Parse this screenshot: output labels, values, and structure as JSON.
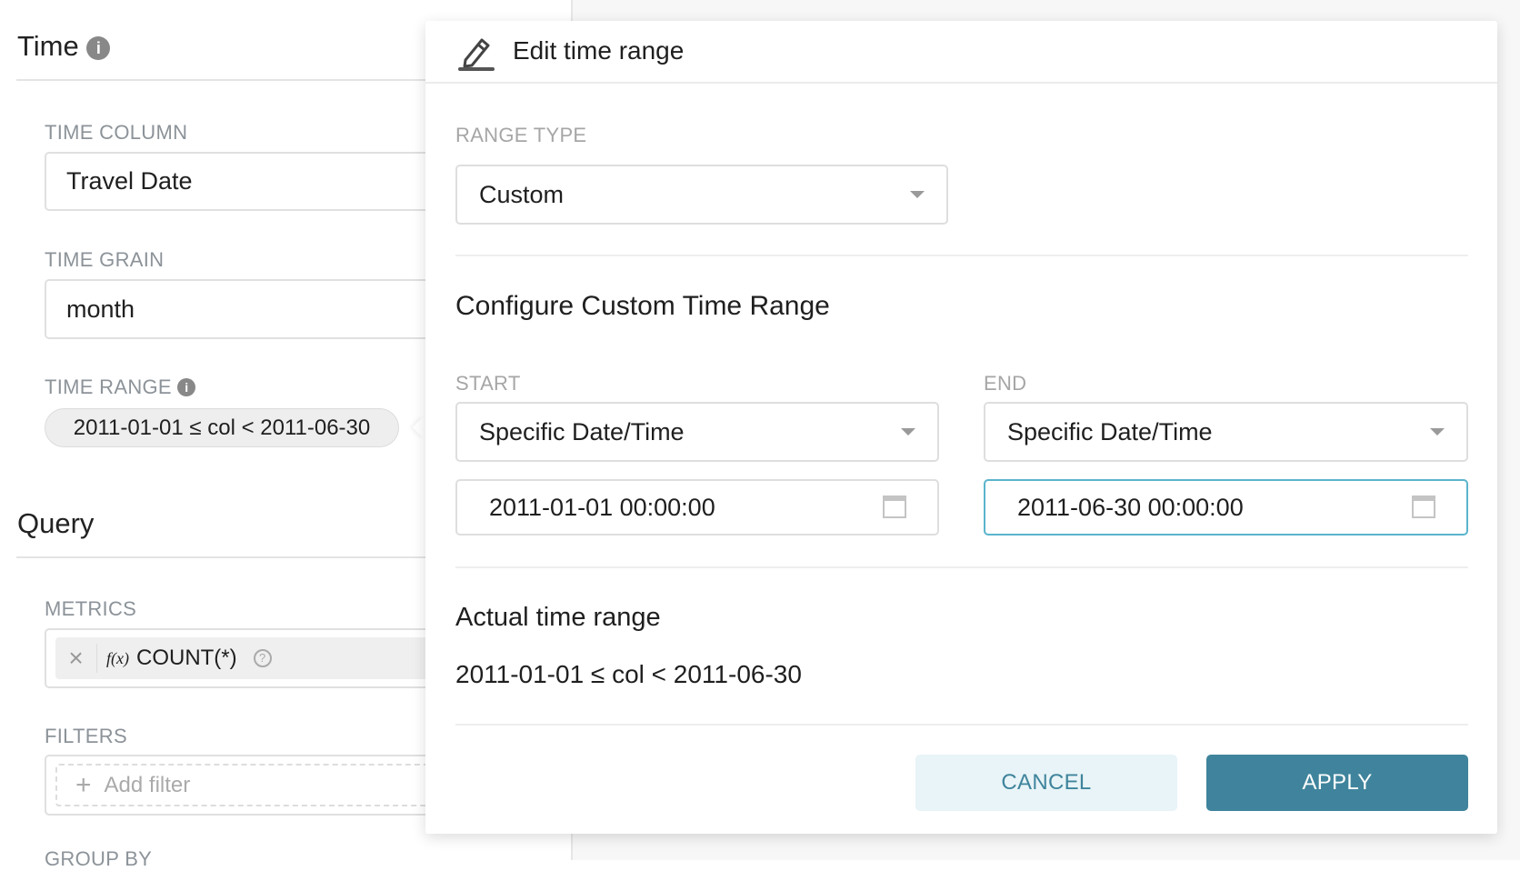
{
  "sidebar": {
    "time_heading": "Time",
    "time_column": {
      "label": "TIME COLUMN",
      "value": "Travel Date"
    },
    "time_grain": {
      "label": "TIME GRAIN",
      "value": "month"
    },
    "time_range": {
      "label": "TIME RANGE",
      "value": "2011-01-01 ≤ col < 2011-06-30"
    },
    "query_heading": "Query",
    "metrics": {
      "label": "METRICS",
      "fx": "f(x)",
      "value": "COUNT(*)",
      "remove": "×",
      "help": "?"
    },
    "filters": {
      "label": "FILTERS",
      "add": "Add filter",
      "plus": "+"
    },
    "group_by": {
      "label": "GROUP BY"
    }
  },
  "popover": {
    "title": "Edit time range",
    "range_type": {
      "label": "RANGE TYPE",
      "value": "Custom"
    },
    "custom_heading": "Configure Custom Time Range",
    "start": {
      "label": "START",
      "mode": "Specific Date/Time",
      "value": "2011-01-01 00:00:00"
    },
    "end": {
      "label": "END",
      "mode": "Specific Date/Time",
      "value": "2011-06-30 00:00:00"
    },
    "actual_heading": "Actual time range",
    "actual_value": "2011-01-01 ≤ col < 2011-06-30",
    "cancel": "CANCEL",
    "apply": "APPLY"
  },
  "colors": {
    "primary": "#3f849c",
    "primary_light": "#e8f4f7",
    "focus_border": "#5bb4cc"
  }
}
